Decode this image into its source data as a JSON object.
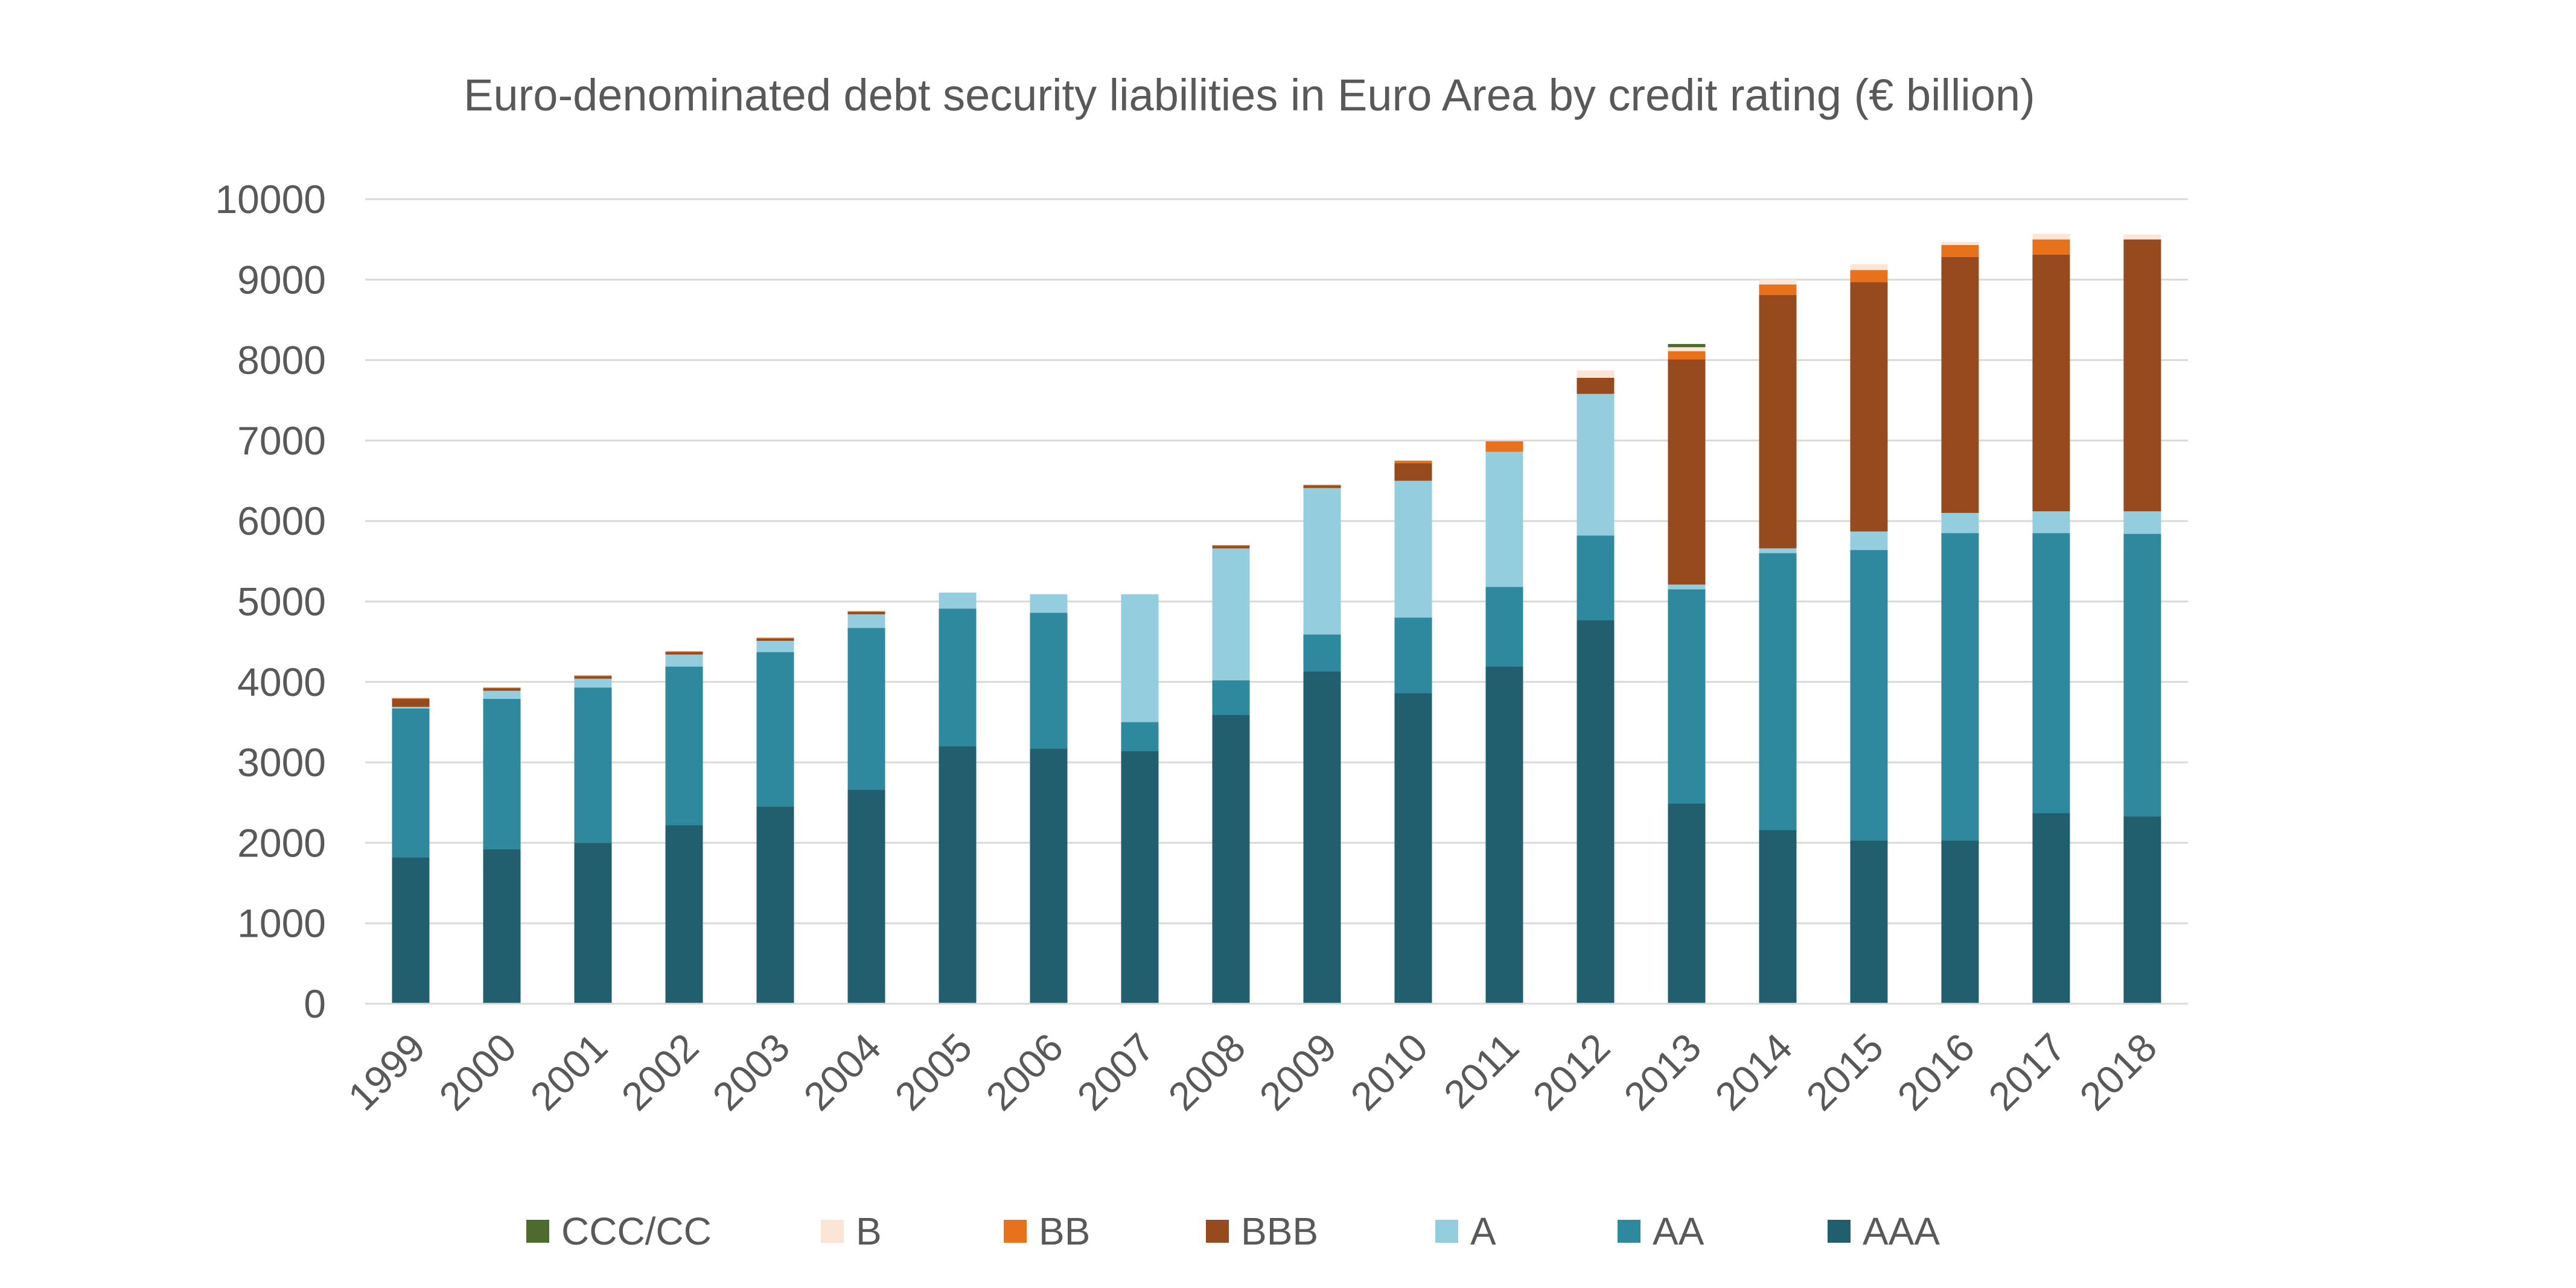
{
  "chart_data": {
    "type": "bar",
    "stacked": true,
    "title": "Euro-denominated debt security liabilities in Euro Area by credit rating (€ billion)",
    "xlabel": "",
    "ylabel": "",
    "ylim": [
      0,
      10000
    ],
    "yticks": [
      0,
      1000,
      2000,
      3000,
      4000,
      5000,
      6000,
      7000,
      8000,
      9000,
      10000
    ],
    "grid": true,
    "legend_position": "bottom",
    "categories": [
      "1999",
      "2000",
      "2001",
      "2002",
      "2003",
      "2004",
      "2005",
      "2006",
      "2007",
      "2008",
      "2009",
      "2010",
      "2011",
      "2012",
      "2013",
      "2014",
      "2015",
      "2016",
      "2017",
      "2018"
    ],
    "series": [
      {
        "name": "AAA",
        "color": "#225F6E",
        "values": [
          1820,
          1920,
          2000,
          2220,
          2450,
          2660,
          3200,
          3170,
          3140,
          3590,
          4130,
          3860,
          4190,
          4770,
          2490,
          2160,
          2030,
          2030,
          2370,
          2330
        ]
      },
      {
        "name": "AA",
        "color": "#2E889E",
        "values": [
          1850,
          1870,
          1930,
          1970,
          1920,
          2010,
          1710,
          1690,
          360,
          430,
          460,
          940,
          990,
          1050,
          2660,
          3440,
          3610,
          3820,
          3480,
          3510
        ]
      },
      {
        "name": "A",
        "color": "#94CDDD",
        "values": [
          20,
          100,
          110,
          150,
          140,
          170,
          200,
          230,
          1590,
          1640,
          1820,
          1700,
          1680,
          1760,
          60,
          60,
          230,
          250,
          270,
          280
        ]
      },
      {
        "name": "BBB",
        "color": "#974A1D",
        "values": [
          100,
          30,
          30,
          30,
          30,
          30,
          0,
          0,
          0,
          30,
          30,
          220,
          0,
          200,
          2800,
          3150,
          3100,
          3180,
          3190,
          3380
        ]
      },
      {
        "name": "BB",
        "color": "#E8721C",
        "values": [
          10,
          10,
          10,
          10,
          10,
          10,
          0,
          0,
          0,
          10,
          10,
          30,
          130,
          0,
          100,
          130,
          150,
          150,
          190,
          0
        ]
      },
      {
        "name": "B",
        "color": "#FBE5D6",
        "values": [
          0,
          0,
          0,
          0,
          0,
          0,
          0,
          0,
          0,
          0,
          0,
          0,
          0,
          90,
          50,
          60,
          70,
          40,
          70,
          60
        ]
      },
      {
        "name": "CCC/CC",
        "color": "#4E6B2E",
        "values": [
          0,
          0,
          0,
          0,
          0,
          0,
          0,
          0,
          0,
          0,
          0,
          0,
          0,
          0,
          40,
          0,
          0,
          0,
          0,
          0
        ]
      }
    ],
    "legend_order": [
      "CCC/CC",
      "B",
      "BB",
      "BBB",
      "A",
      "AA",
      "AAA"
    ]
  },
  "colors": {
    "gridline": "#D9D9D9",
    "axis": "#D9D9D9",
    "text": "#595959"
  }
}
